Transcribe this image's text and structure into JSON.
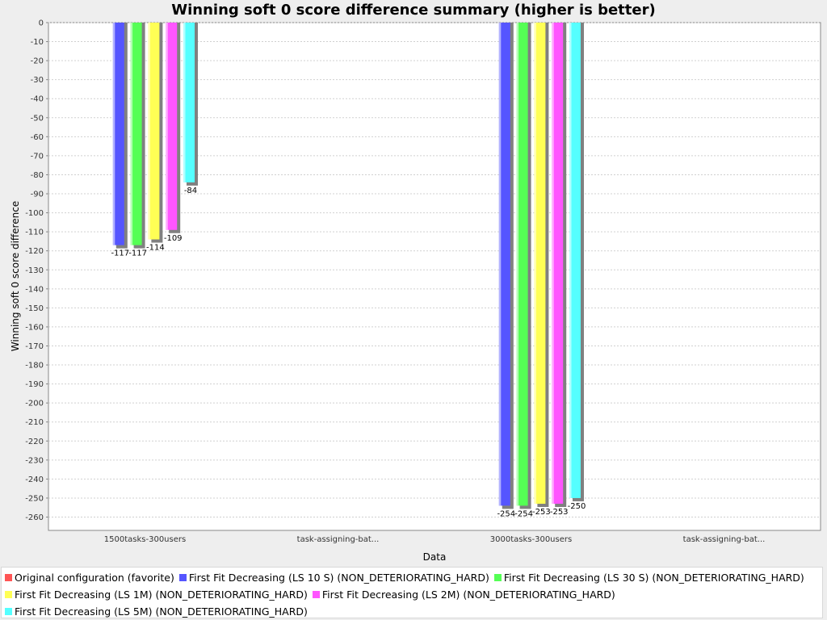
{
  "chart_data": {
    "type": "bar",
    "title": "Winning soft 0 score difference summary (higher is better)",
    "xlabel": "Data",
    "ylabel": "Winning soft 0 score difference",
    "ylim": [
      -267,
      0
    ],
    "yticks": [
      0,
      -10,
      -20,
      -30,
      -40,
      -50,
      -60,
      -70,
      -80,
      -90,
      -100,
      -110,
      -120,
      -130,
      -140,
      -150,
      -160,
      -170,
      -180,
      -190,
      -200,
      -210,
      -220,
      -230,
      -240,
      -250,
      -260
    ],
    "grid": true,
    "legend_position": "bottom",
    "categories": [
      "1500tasks-300users",
      "task-assigning-bat...",
      "3000tasks-300users",
      "task-assigning-bat..."
    ],
    "series": [
      {
        "name": "Original configuration (favorite)",
        "color": "#ff5555",
        "values": [
          null,
          null,
          null,
          null
        ]
      },
      {
        "name": "First Fit Decreasing (LS 10 S) (NON_DETERIORATING_HARD)",
        "color": "#5555ff",
        "values": [
          -117,
          null,
          -254,
          null
        ]
      },
      {
        "name": "First Fit Decreasing (LS 30 S) (NON_DETERIORATING_HARD)",
        "color": "#55ff55",
        "values": [
          -117,
          null,
          -254,
          null
        ]
      },
      {
        "name": "First Fit Decreasing (LS 1M) (NON_DETERIORATING_HARD)",
        "color": "#ffff55",
        "values": [
          -114,
          null,
          -253,
          null
        ]
      },
      {
        "name": "First Fit Decreasing (LS 2M) (NON_DETERIORATING_HARD)",
        "color": "#ff55ff",
        "values": [
          -109,
          null,
          -253,
          null
        ]
      },
      {
        "name": "First Fit Decreasing (LS 5M) (NON_DETERIORATING_HARD)",
        "color": "#55ffff",
        "values": [
          -84,
          null,
          -250,
          null
        ]
      }
    ]
  },
  "legend_rows": [
    [
      0,
      1,
      2
    ],
    [
      3,
      4
    ],
    [
      5
    ]
  ]
}
